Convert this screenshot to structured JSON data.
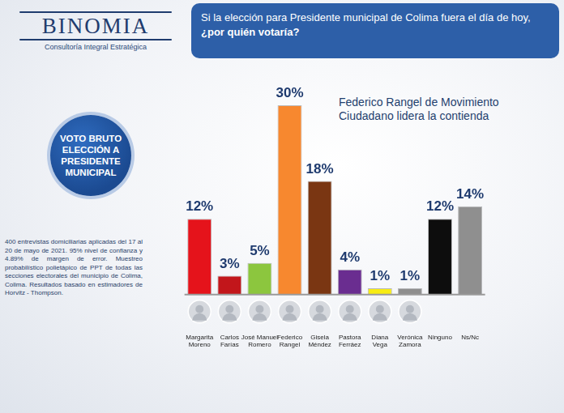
{
  "header": {
    "logo": "BINOMIA",
    "logo_tagline": "Consultoría Integral Estratégica",
    "badge": "VOTO BRUTO ELECCIÓN A PRESIDENTE MUNICIPAL",
    "methodology": "400 entrevistas domiciliarias aplicadas del 17 al 20 de mayo de 2021. 95% nivel de confianza y 4.89% de margen de error. Muestreo probabilístico polietápico de PPT de todas las secciones electorales del municipio de Colima, Colima. Resultados basado en estimadores de Horvitz - Thompson."
  },
  "chart_data": {
    "type": "bar",
    "title": "Si la elección para Presidente municipal de Colima fuera el día de hoy, ¿por quién votaría?",
    "annotations": [
      "Federico Rangel de Movimiento Ciudadano lidera la contienda"
    ],
    "categories": [
      "Margarita Moreno",
      "Carlos Farías",
      "José Manuel Romero",
      "Federico Rangel",
      "Gisela Méndez",
      "Pastora Ferráez",
      "Diana Vega",
      "Verónica Zamora",
      "Ninguno",
      "Ns/Nc"
    ],
    "values": [
      12,
      3,
      5,
      30,
      18,
      4,
      1,
      1,
      12,
      14
    ],
    "value_labels": [
      "12%",
      "3%",
      "5%",
      "30%",
      "18%",
      "4%",
      "1%",
      "1%",
      "12%",
      "14%"
    ],
    "colors": [
      "#e5131b",
      "#c2161b",
      "#8cc63e",
      "#f7882f",
      "#7a3612",
      "#6a2d90",
      "#f7ec13",
      "#8e8e8e",
      "#0d0d0d",
      "#8f8f8f"
    ],
    "ylim": [
      0,
      30
    ],
    "grid": false,
    "data_labels": true,
    "tick_labels": "x"
  }
}
